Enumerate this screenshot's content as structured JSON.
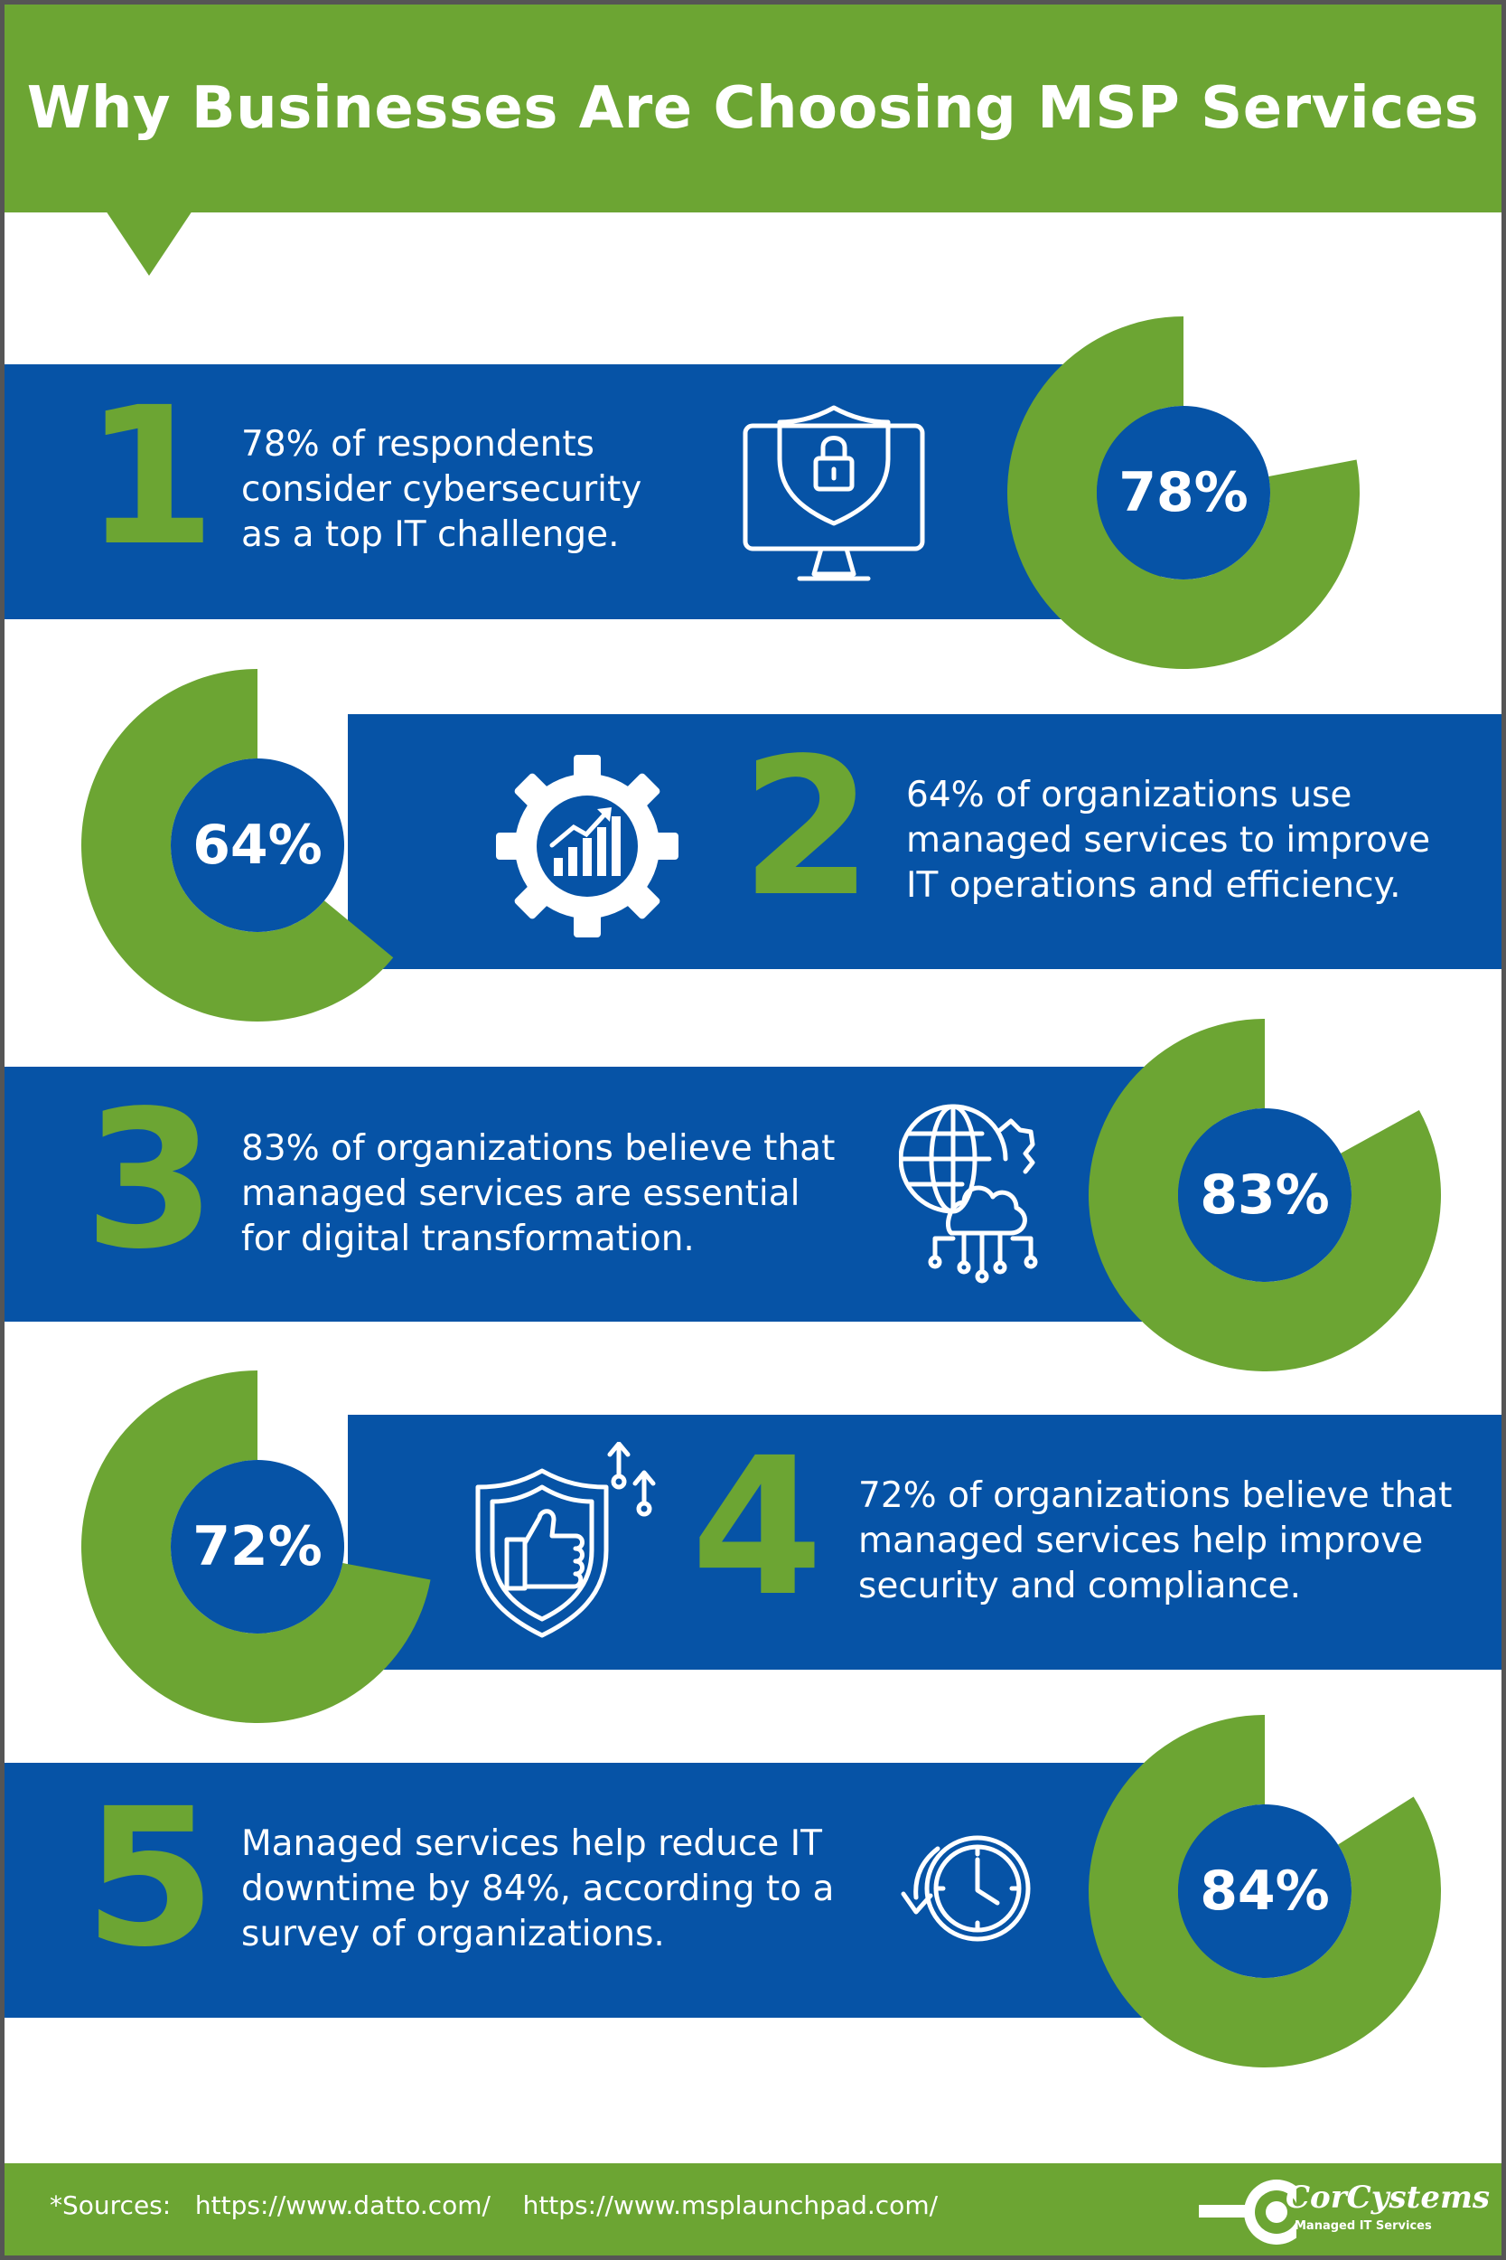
{
  "header": {
    "title": "Why Businesses Are Choosing MSP Services"
  },
  "items": [
    {
      "number": "1",
      "percent_label": "78%",
      "value": 78,
      "icon": "monitor-shield-lock-icon",
      "text": [
        "78% of respondents",
        "consider cybersecurity",
        "as a top IT challenge."
      ]
    },
    {
      "number": "2",
      "percent_label": "64%",
      "value": 64,
      "icon": "gear-growth-chart-icon",
      "text": [
        "64% of organizations use",
        "managed services to improve",
        "IT operations and efficiency."
      ]
    },
    {
      "number": "3",
      "percent_label": "83%",
      "value": 83,
      "icon": "globe-cloud-network-icon",
      "text": [
        "83% of organizations believe that",
        "managed services are essential",
        "for digital transformation."
      ]
    },
    {
      "number": "4",
      "percent_label": "72%",
      "value": 72,
      "icon": "shield-thumbs-up-icon",
      "text": [
        "72% of organizations believe that",
        "managed services help improve",
        "security and compliance."
      ]
    },
    {
      "number": "5",
      "percent_label": "84%",
      "value": 84,
      "icon": "clock-refresh-icon",
      "text": [
        "Managed services help reduce IT",
        "downtime by 84%, according to a",
        "survey of organizations."
      ]
    }
  ],
  "footer": {
    "sources_label": "*Sources:",
    "source_1": "https://www.datto.com/",
    "source_2": "https://www.msplaunchpad.com/"
  },
  "logo": {
    "name": "CorCystems",
    "tagline": "Managed IT Services"
  },
  "colors": {
    "green": "#6ca533",
    "blue": "#0653a6",
    "white": "#ffffff"
  }
}
